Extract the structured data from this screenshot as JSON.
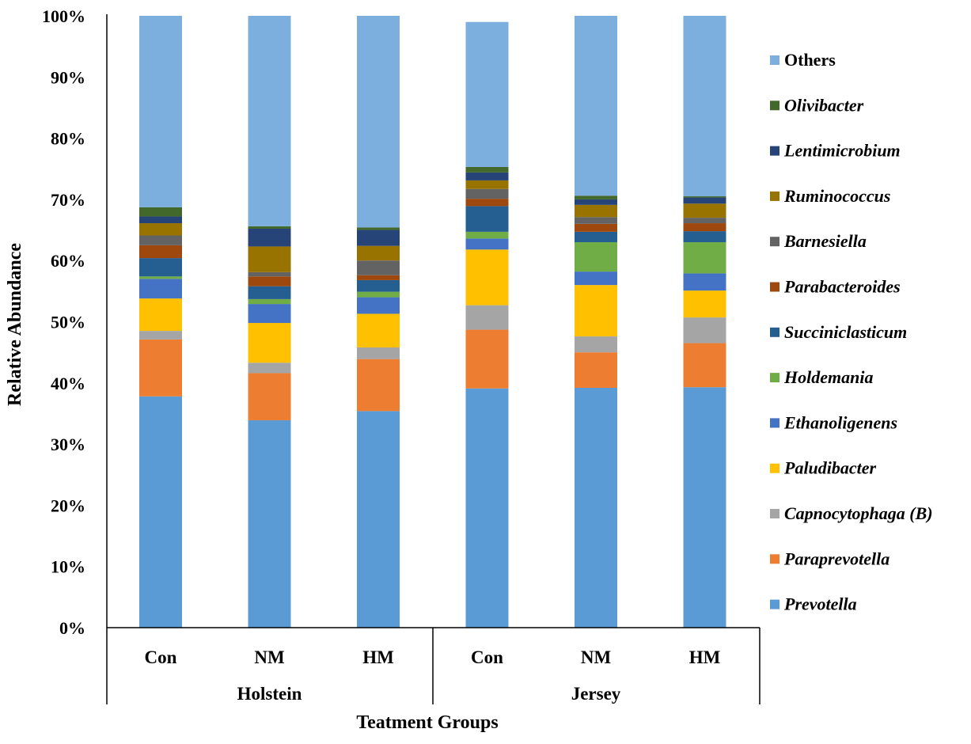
{
  "chart_data": {
    "type": "bar",
    "stacked": true,
    "xlabel": "Teatment Groups",
    "ylabel": "Relative Abundance",
    "ylim": [
      0,
      100
    ],
    "y_ticks": [
      "0%",
      "10%",
      "20%",
      "30%",
      "40%",
      "50%",
      "60%",
      "70%",
      "80%",
      "90%",
      "100%"
    ],
    "categories": [
      "Con",
      "NM",
      "HM",
      "Con",
      "NM",
      "HM"
    ],
    "groups": [
      {
        "name": "Holstein",
        "categories": [
          0,
          1,
          2
        ]
      },
      {
        "name": "Jersey",
        "categories": [
          3,
          4,
          5
        ]
      }
    ],
    "legend_position": "right",
    "series": [
      {
        "name": "Prevotella",
        "italic": true,
        "color": "#5B9BD5",
        "values": [
          37.8,
          33.9,
          35.4,
          39.1,
          39.2,
          39.3
        ]
      },
      {
        "name": "Paraprevotella",
        "italic": true,
        "color": "#ED7D31",
        "values": [
          9.3,
          7.7,
          8.5,
          9.6,
          5.8,
          7.2
        ]
      },
      {
        "name": "Capnocytophaga (B)",
        "italic": true,
        "color": "#A5A5A5",
        "values": [
          1.4,
          1.7,
          1.9,
          4.0,
          2.6,
          4.2
        ]
      },
      {
        "name": "Paludibacter",
        "italic": true,
        "color": "#FFC000",
        "values": [
          5.3,
          6.5,
          5.5,
          9.1,
          8.4,
          4.4
        ]
      },
      {
        "name": "Ethanoligenens",
        "italic": true,
        "color": "#4472C4",
        "values": [
          3.2,
          3.1,
          2.7,
          1.8,
          2.2,
          2.8
        ]
      },
      {
        "name": "Holdemania",
        "italic": true,
        "color": "#70AD47",
        "values": [
          0.4,
          0.8,
          0.9,
          1.1,
          4.8,
          5.1
        ]
      },
      {
        "name": "Succiniclasticum",
        "italic": true,
        "color": "#255E91",
        "values": [
          3.0,
          2.1,
          1.9,
          4.2,
          1.7,
          1.8
        ]
      },
      {
        "name": "Parabacteroides",
        "italic": true,
        "color": "#9E480E",
        "values": [
          2.1,
          1.6,
          0.8,
          1.2,
          1.3,
          1.3
        ]
      },
      {
        "name": "Barnesiella",
        "italic": true,
        "color": "#636363",
        "values": [
          1.6,
          0.7,
          2.4,
          1.6,
          1.1,
          0.9
        ]
      },
      {
        "name": "Ruminococcus",
        "italic": true,
        "color": "#997300",
        "values": [
          2.0,
          4.2,
          2.4,
          1.4,
          2.0,
          2.3
        ]
      },
      {
        "name": "Lentimicrobium",
        "italic": true,
        "color": "#264478",
        "values": [
          1.1,
          2.9,
          2.6,
          1.3,
          0.9,
          1.0
        ]
      },
      {
        "name": "Olivibacter",
        "italic": true,
        "color": "#43682B",
        "values": [
          1.5,
          0.4,
          0.4,
          0.9,
          0.6,
          0.2
        ]
      },
      {
        "name": "Others",
        "italic": false,
        "color": "#7CAFDD",
        "values": [
          31.3,
          34.4,
          34.6,
          23.7,
          29.4,
          29.5
        ]
      }
    ]
  }
}
